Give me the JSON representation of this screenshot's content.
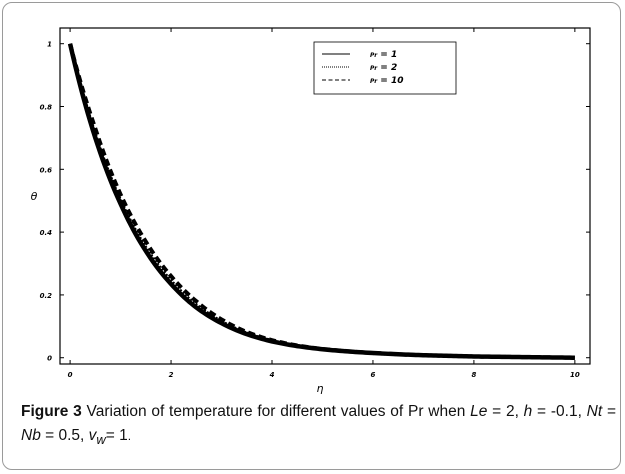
{
  "chart_data": {
    "type": "line",
    "xlabel": "η",
    "ylabel": "θ",
    "xlim": [
      -0.2,
      10.3
    ],
    "ylim": [
      -0.02,
      1.05
    ],
    "x_ticks": [
      "0",
      "2",
      "4",
      "6",
      "8",
      "10"
    ],
    "y_ticks": [
      "0",
      "0.2",
      "0.4",
      "0.6",
      "0.8",
      "1"
    ],
    "legend_position": "top-right",
    "series": [
      {
        "name": "Pr = 1",
        "style": "solid",
        "x": [
          0,
          0.5,
          1,
          1.5,
          2,
          2.5,
          3,
          3.5,
          4,
          4.5,
          5,
          5.5,
          6,
          6.5,
          7,
          7.5,
          8,
          8.5,
          9,
          9.5,
          10
        ],
        "y": [
          1.0,
          0.7,
          0.49,
          0.34,
          0.235,
          0.16,
          0.11,
          0.075,
          0.052,
          0.037,
          0.027,
          0.02,
          0.015,
          0.011,
          0.008,
          0.006,
          0.004,
          0.003,
          0.002,
          0.001,
          0.0
        ]
      },
      {
        "name": "Pr = 2",
        "style": "dotted",
        "x": [
          0,
          0.5,
          1,
          1.5,
          2,
          2.5,
          3,
          3.5,
          4,
          4.5,
          5,
          5.5,
          6,
          6.5,
          7,
          7.5,
          8,
          8.5,
          9,
          9.5,
          10
        ],
        "y": [
          1.0,
          0.71,
          0.5,
          0.35,
          0.245,
          0.168,
          0.115,
          0.078,
          0.054,
          0.038,
          0.028,
          0.02,
          0.015,
          0.011,
          0.008,
          0.006,
          0.004,
          0.003,
          0.002,
          0.001,
          0.0
        ]
      },
      {
        "name": "Pr = 10",
        "style": "dashed",
        "x": [
          0,
          0.5,
          1,
          1.5,
          2,
          2.5,
          3,
          3.5,
          4,
          4.5,
          5,
          5.5,
          6,
          6.5,
          7,
          7.5,
          8,
          8.5,
          9,
          9.5,
          10
        ],
        "y": [
          1.0,
          0.73,
          0.52,
          0.37,
          0.26,
          0.18,
          0.122,
          0.082,
          0.056,
          0.039,
          0.028,
          0.021,
          0.015,
          0.011,
          0.008,
          0.006,
          0.004,
          0.003,
          0.002,
          0.001,
          0.0
        ]
      }
    ]
  },
  "legend": {
    "items": [
      {
        "symbol": "Pr",
        "value": "1"
      },
      {
        "symbol": "Pr",
        "value": "2"
      },
      {
        "symbol": "Pr",
        "value": "10"
      }
    ]
  },
  "caption": {
    "label": "Figure 3",
    "text_1": " Variation of temperature for different values of Pr when ",
    "le": "Le",
    "text_2": " = 2, ",
    "h": "h",
    "text_3": " = -0.1, ",
    "nt": "Nt",
    "text_4": " = ",
    "nb": "Nb",
    "text_5": " = 0.5, ",
    "v": "v",
    "w": "w",
    "text_6": "= 1",
    "text_7": "."
  }
}
